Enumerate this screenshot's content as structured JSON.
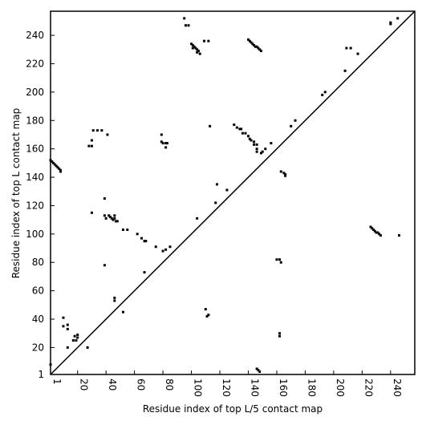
{
  "chart_data": {
    "type": "scatter",
    "xlabel": "Residue index of top L/5 contact map",
    "ylabel": "Residue index of top L contact map",
    "color": "#000000",
    "xlim": [
      1,
      257
    ],
    "ylim": [
      1,
      257
    ],
    "xticks": [
      1,
      20,
      40,
      60,
      80,
      100,
      120,
      140,
      160,
      180,
      200,
      220,
      240
    ],
    "yticks": [
      1,
      20,
      40,
      60,
      80,
      100,
      120,
      140,
      160,
      180,
      200,
      220,
      240
    ],
    "x": [
      1,
      2,
      3,
      4,
      5,
      6,
      7,
      8,
      8,
      1,
      10,
      10,
      13,
      13,
      13,
      18,
      19,
      20,
      20,
      17,
      27,
      28,
      30,
      30,
      31,
      34,
      37,
      41,
      30,
      39,
      39,
      40,
      42,
      43,
      44,
      45,
      46,
      47,
      48,
      46,
      39,
      46,
      46,
      52,
      52,
      55,
      62,
      65,
      67,
      68,
      67,
      75,
      80,
      82,
      85,
      79,
      79,
      80,
      82,
      83,
      82,
      95,
      96,
      98,
      100,
      101,
      102,
      103,
      104,
      105,
      106,
      104,
      101,
      104,
      109,
      112,
      113,
      110,
      111,
      112,
      118,
      117,
      125,
      130,
      132,
      134,
      135,
      136,
      138,
      140,
      141,
      142,
      144,
      144,
      146,
      146,
      146,
      149,
      150,
      152,
      156,
      140,
      141,
      142,
      143,
      144,
      145,
      146,
      147,
      148,
      149,
      160,
      162,
      163,
      162,
      162,
      146,
      148,
      147,
      163,
      165,
      166,
      166,
      170,
      173,
      192,
      194,
      208,
      209,
      212,
      217,
      226,
      227,
      228,
      229,
      230,
      231,
      232,
      233,
      246,
      240,
      240,
      245
    ],
    "values": [
      152,
      151,
      150,
      149,
      148,
      147,
      146,
      145,
      144,
      8,
      41,
      35,
      36,
      33,
      20,
      28,
      25,
      29,
      27,
      25,
      20,
      162,
      162,
      166,
      173,
      173,
      173,
      170,
      115,
      125,
      78,
      111,
      113,
      112,
      111,
      110,
      111,
      109,
      109,
      113,
      113,
      53,
      55,
      45,
      103,
      103,
      100,
      97,
      95,
      95,
      73,
      91,
      88,
      89,
      91,
      170,
      165,
      164,
      164,
      164,
      161,
      252,
      247,
      247,
      234,
      233,
      232,
      231,
      230,
      229,
      227,
      228,
      231,
      111,
      236,
      236,
      176,
      47,
      42,
      43,
      135,
      122,
      131,
      177,
      175,
      174,
      174,
      171,
      171,
      169,
      167,
      166,
      165,
      163,
      163,
      160,
      158,
      157,
      158,
      160,
      164,
      237,
      236,
      235,
      234,
      233,
      232,
      232,
      231,
      230,
      229,
      82,
      82,
      80,
      30,
      28,
      5,
      3,
      4,
      144,
      143,
      142,
      141,
      176,
      180,
      198,
      200,
      215,
      231,
      231,
      227,
      105,
      104,
      103,
      102,
      101,
      101,
      100,
      99,
      99,
      249,
      248,
      252
    ]
  }
}
